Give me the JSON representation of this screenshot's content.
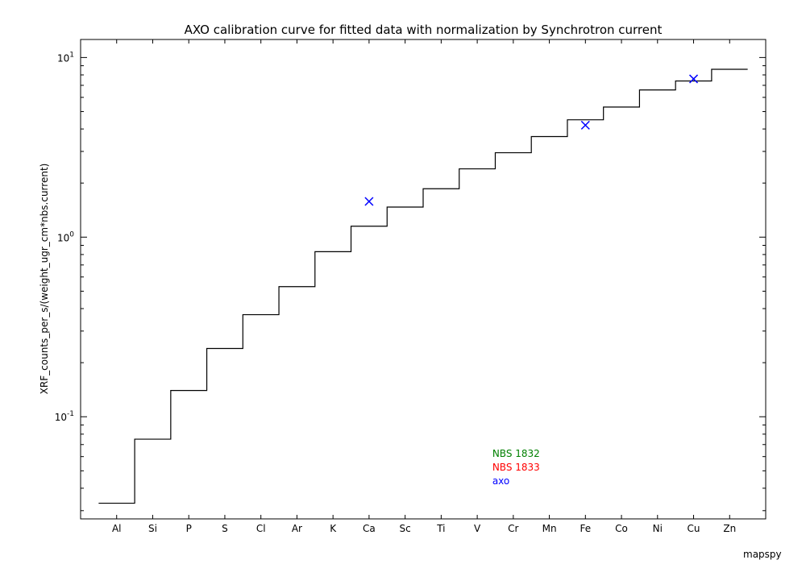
{
  "chart_data": {
    "type": "line",
    "title": "AXO calibration curve for fitted data with normalization by Synchrotron current",
    "xlabel": "",
    "ylabel": "XRF_counts_per_s/(weight_ugr_cm*nbs.current)",
    "y_scale": "log",
    "ylim": [
      0.027,
      12.6
    ],
    "x_range": [
      -1,
      18
    ],
    "categories": [
      "Al",
      "Si",
      "P",
      "S",
      "Cl",
      "Ar",
      "K",
      "Ca",
      "Sc",
      "Ti",
      "V",
      "Cr",
      "Mn",
      "Fe",
      "Co",
      "Ni",
      "Cu",
      "Zn"
    ],
    "y_ticks": [
      {
        "base": "10",
        "exp": "-1",
        "value": 0.1
      },
      {
        "base": "10",
        "exp": "0",
        "value": 1
      },
      {
        "base": "10",
        "exp": "1",
        "value": 10
      }
    ],
    "grid": false,
    "series": [
      {
        "type": "step",
        "color": "#000000",
        "values": [
          0.033,
          0.075,
          0.14,
          0.24,
          0.37,
          0.53,
          0.83,
          1.15,
          1.47,
          1.86,
          2.4,
          2.95,
          3.63,
          4.5,
          5.3,
          6.6,
          7.4,
          8.6
        ]
      },
      {
        "type": "scatter",
        "marker": "x",
        "color": "#0000ff",
        "points": [
          {
            "x": "Ca",
            "y": 1.58
          },
          {
            "x": "Fe",
            "y": 4.2
          },
          {
            "x": "Cu",
            "y": 7.6
          }
        ]
      }
    ],
    "legend": {
      "placement": "lower-center",
      "entries": [
        {
          "label": "NBS 1832",
          "color": "#008000"
        },
        {
          "label": "NBS 1833",
          "color": "#ff0000"
        },
        {
          "label": "axo",
          "color": "#0000ff"
        }
      ]
    }
  },
  "footer": {
    "label": "mapspy"
  }
}
